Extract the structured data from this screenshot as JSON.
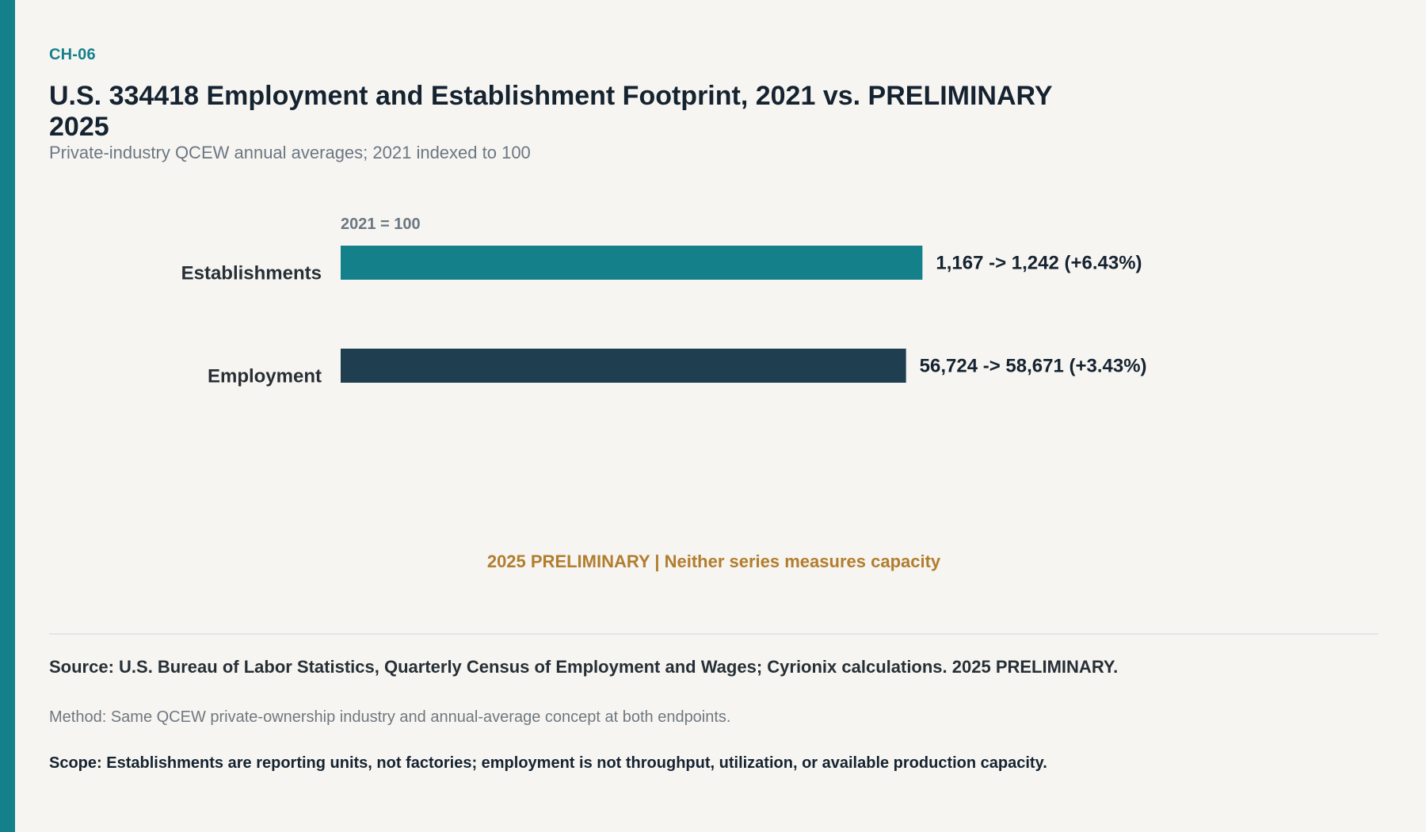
{
  "header": {
    "chart_id": "CH-06",
    "title": "U.S. 334418 Employment and Establishment Footprint, 2021 vs. PRELIMINARY 2025",
    "subtitle": "Private-industry QCEW annual averages; 2021 indexed to 100"
  },
  "chart_data": {
    "type": "bar",
    "orientation": "horizontal",
    "index_label": "2021 = 100",
    "categories": [
      "Establishments",
      "Employment"
    ],
    "series": [
      {
        "values_2021": [
          1167,
          56724
        ],
        "values_2025": [
          1242,
          58671
        ],
        "pct_change": [
          6.43,
          3.43
        ],
        "index_2025": [
          106.43,
          103.43
        ]
      }
    ],
    "data_labels": [
      "1,167 -> 1,242 (+6.43%)",
      "56,724 -> 58,671 (+3.43%)"
    ],
    "bar_colors": [
      "#14808a",
      "#1f3f51"
    ],
    "grid": false
  },
  "annotation": "2025 PRELIMINARY | Neither series measures capacity",
  "footer": {
    "source": "Source: U.S. Bureau of Labor Statistics, Quarterly Census of Employment and Wages; Cyrionix calculations. 2025 PRELIMINARY.",
    "method": "Method: Same QCEW private-ownership industry and annual-average concept at both endpoints.",
    "scope": "Scope: Establishments are reporting units, not factories; employment is not throughput, utilization, or available production capacity."
  },
  "colors": {
    "accent": "#14818a",
    "title": "#152331",
    "annotation": "#b17d2e"
  }
}
